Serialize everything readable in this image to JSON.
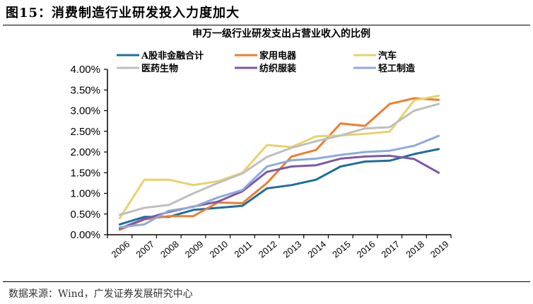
{
  "figure": {
    "title": "图15：消费制造行业研发投入力度加大",
    "source": "数据来源：Wind，广发证券发展研究中心"
  },
  "chart_data": {
    "type": "line",
    "title": "申万一级行业研发支出占营业收入的比例",
    "xlabel": "",
    "ylabel": "",
    "categories": [
      "2006",
      "2007",
      "2008",
      "2009",
      "2010",
      "2011",
      "2012",
      "2013",
      "2014",
      "2015",
      "2016",
      "2017",
      "2018",
      "2019"
    ],
    "ylim": [
      0,
      4.0
    ],
    "yticks": [
      0,
      0.5,
      1.0,
      1.5,
      2.0,
      2.5,
      3.0,
      3.5,
      4.0
    ],
    "ytick_labels": [
      "0.00%",
      "0.50%",
      "1.00%",
      "1.50%",
      "2.00%",
      "2.50%",
      "3.00%",
      "3.50%",
      "4.00%"
    ],
    "y_unit": "%",
    "grid": false,
    "legend_position": "top",
    "series": [
      {
        "name": "A股非金融合计",
        "color": "#1F6E9C",
        "values": [
          0.25,
          0.43,
          0.43,
          0.6,
          0.65,
          0.7,
          1.12,
          1.2,
          1.33,
          1.65,
          1.77,
          1.79,
          1.95,
          2.07
        ]
      },
      {
        "name": "家用电器",
        "color": "#ED7D31",
        "values": [
          0.12,
          0.37,
          0.45,
          0.45,
          0.78,
          0.76,
          1.25,
          1.89,
          2.05,
          2.69,
          2.63,
          3.16,
          3.3,
          3.26
        ]
      },
      {
        "name": "汽车",
        "color": "#E8D26A",
        "values": [
          0.4,
          1.33,
          1.33,
          1.2,
          1.29,
          1.5,
          2.17,
          2.12,
          2.38,
          2.4,
          2.44,
          2.49,
          3.25,
          3.36
        ]
      },
      {
        "name": "医药生物",
        "color": "#BFBFBF",
        "values": [
          0.48,
          0.65,
          0.72,
          1.0,
          1.25,
          1.48,
          1.88,
          2.1,
          2.26,
          2.4,
          2.57,
          2.6,
          3.0,
          3.16
        ]
      },
      {
        "name": "纺织服装",
        "color": "#7E57A6",
        "values": [
          0.15,
          0.38,
          0.55,
          0.68,
          0.8,
          1.05,
          1.52,
          1.65,
          1.68,
          1.84,
          1.89,
          1.91,
          1.83,
          1.5
        ]
      },
      {
        "name": "轻工制造",
        "color": "#8EAADB",
        "values": [
          0.18,
          0.25,
          0.58,
          0.67,
          0.9,
          1.08,
          1.65,
          1.8,
          1.84,
          1.93,
          2.0,
          2.03,
          2.15,
          2.39
        ]
      }
    ]
  }
}
